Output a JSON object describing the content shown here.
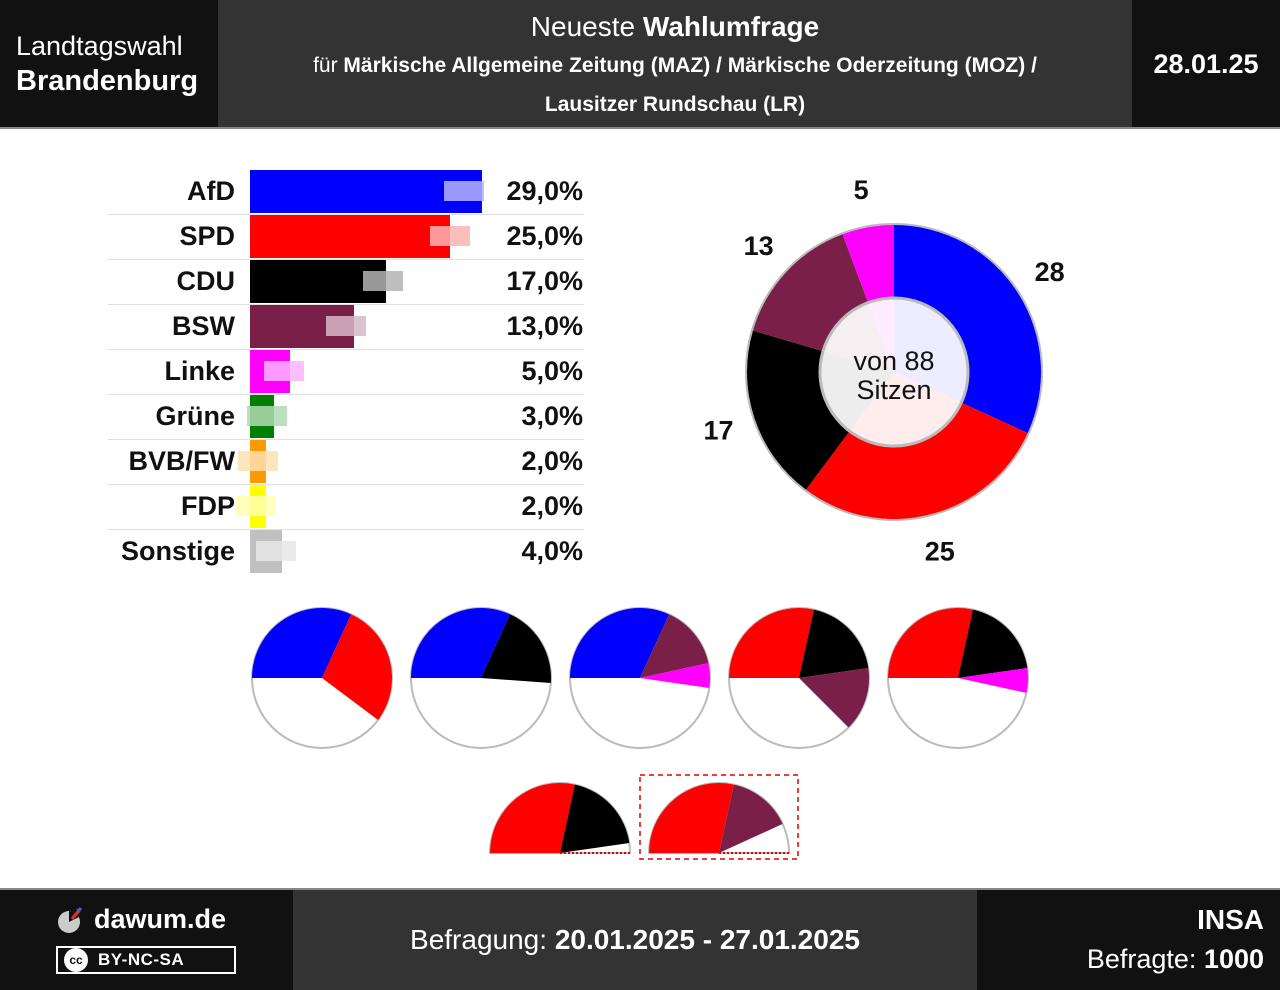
{
  "header": {
    "left_line1": "Landtagswahl",
    "left_line2": "Brandenburg",
    "title_normal": "Neueste ",
    "title_bold": "Wahlumfrage",
    "subtitle_prefix": "für ",
    "subtitle_bold": "Märkische Allgemeine Zeitung (MAZ) / Märkische Oderzeitung (MOZ) /",
    "subtitle_line2": "Lausitzer Rundschau (LR)",
    "date": "28.01.25"
  },
  "chart_data": [
    {
      "type": "bar",
      "orientation": "horizontal",
      "categories": [
        "AfD",
        "SPD",
        "CDU",
        "BSW",
        "Linke",
        "Grüne",
        "BVB/FW",
        "FDP",
        "Sonstige"
      ],
      "values": [
        29.0,
        25.0,
        17.0,
        13.0,
        5.0,
        3.0,
        2.0,
        2.0,
        4.0
      ],
      "value_labels": [
        "29,0%",
        "25,0%",
        "17,0%",
        "13,0%",
        "5,0%",
        "3,0%",
        "2,0%",
        "2,0%",
        "4,0%"
      ],
      "previous_values": [
        29.2,
        27.5,
        19.1,
        14.5,
        6.8,
        4.6,
        3.5,
        3.2,
        5.8
      ],
      "colors": [
        "#0000ff",
        "#ff0000",
        "#000000",
        "#7a2048",
        "#ff00ff",
        "#008000",
        "#ff9900",
        "#ffff00",
        "#c0c0c0"
      ],
      "previous_colors": [
        "#b3b3ff",
        "#ffb3b3",
        "#b3b3b3",
        "#d6b8c8",
        "#ffb3ff",
        "#b3d9b3",
        "#ffe0b3",
        "#ffffb3",
        "#e6e6e6"
      ],
      "xlim": [
        0,
        40
      ]
    },
    {
      "type": "pie",
      "style": "donut",
      "center_line1": "von 88",
      "center_line2": "Sitzen",
      "total_seats": 88,
      "start_angle_deg": 90,
      "slices": [
        {
          "party": "AfD",
          "seats": 28,
          "color": "#0000ff"
        },
        {
          "party": "SPD",
          "seats": 25,
          "color": "#ff0000"
        },
        {
          "party": "CDU",
          "seats": 17,
          "color": "#000000"
        },
        {
          "party": "BSW",
          "seats": 13,
          "color": "#7a2048"
        },
        {
          "party": "Linke",
          "seats": 5,
          "color": "#ff00ff"
        }
      ]
    },
    {
      "type": "pie",
      "description": "coalition options",
      "majority_fraction": 0.5,
      "coalitions": [
        {
          "parties": [
            {
              "party": "AfD",
              "seats": 28,
              "color": "#0000ff"
            },
            {
              "party": "SPD",
              "seats": 25,
              "color": "#ff0000"
            }
          ],
          "style": "full",
          "highlighted": false
        },
        {
          "parties": [
            {
              "party": "AfD",
              "seats": 28,
              "color": "#0000ff"
            },
            {
              "party": "CDU",
              "seats": 17,
              "color": "#000000"
            }
          ],
          "style": "full",
          "highlighted": false
        },
        {
          "parties": [
            {
              "party": "AfD",
              "seats": 28,
              "color": "#0000ff"
            },
            {
              "party": "BSW",
              "seats": 13,
              "color": "#7a2048"
            },
            {
              "party": "Linke",
              "seats": 5,
              "color": "#ff00ff"
            }
          ],
          "style": "full",
          "highlighted": false
        },
        {
          "parties": [
            {
              "party": "SPD",
              "seats": 25,
              "color": "#ff0000"
            },
            {
              "party": "CDU",
              "seats": 17,
              "color": "#000000"
            },
            {
              "party": "BSW",
              "seats": 13,
              "color": "#7a2048"
            }
          ],
          "style": "full",
          "highlighted": false
        },
        {
          "parties": [
            {
              "party": "SPD",
              "seats": 25,
              "color": "#ff0000"
            },
            {
              "party": "CDU",
              "seats": 17,
              "color": "#000000"
            },
            {
              "party": "Linke",
              "seats": 5,
              "color": "#ff00ff"
            }
          ],
          "style": "full",
          "highlighted": false
        },
        {
          "parties": [
            {
              "party": "SPD",
              "seats": 25,
              "color": "#ff0000"
            },
            {
              "party": "CDU",
              "seats": 17,
              "color": "#000000"
            }
          ],
          "style": "half",
          "highlighted": false
        },
        {
          "parties": [
            {
              "party": "SPD",
              "seats": 25,
              "color": "#ff0000"
            },
            {
              "party": "BSW",
              "seats": 13,
              "color": "#7a2048"
            }
          ],
          "style": "half",
          "highlighted": true
        }
      ]
    }
  ],
  "footer": {
    "site": "dawum.de",
    "license": "BY-NC-SA",
    "license_icon": "cc",
    "period_label": "Befragung: ",
    "period_value": "20.01.2025 - 27.01.2025",
    "institute": "INSA",
    "respondents_label": "Befragte: ",
    "respondents_value": "1000"
  }
}
